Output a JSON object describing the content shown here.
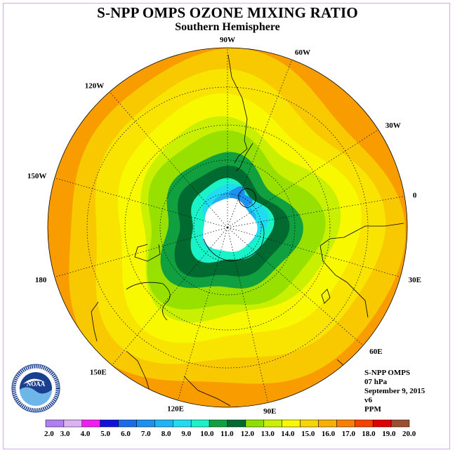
{
  "title": "S-NPP OMPS OZONE MIXING RATIO",
  "subtitle": "Southern Hemisphere",
  "longitude_labels": [
    "90W",
    "60W",
    "30W",
    "0",
    "30E",
    "60E",
    "90E",
    "120E",
    "150E",
    "180",
    "150W",
    "120W"
  ],
  "info": {
    "instrument": "S-NPP OMPS",
    "level": "07 hPa",
    "date": "September 9, 2015",
    "version": "v6",
    "units": "PPM"
  },
  "colorbar": {
    "ticks": [
      "2.0",
      "3.0",
      "4.0",
      "5.0",
      "6.0",
      "7.0",
      "8.0",
      "9.0",
      "10.0",
      "11.0",
      "12.0",
      "13.0",
      "14.0",
      "15.0",
      "16.0",
      "17.0",
      "18.0",
      "19.0",
      "20.0"
    ],
    "colors": [
      "#b07ef0",
      "#dcb0f5",
      "#f01cf0",
      "#1010e0",
      "#1a6ce8",
      "#1e90ee",
      "#20b4f2",
      "#20dcf0",
      "#1af2c8",
      "#10a040",
      "#006a30",
      "#8ce000",
      "#c8f000",
      "#f8f800",
      "#f8d400",
      "#f8b000",
      "#f88000",
      "#f84000",
      "#e00000",
      "#9a5030"
    ]
  },
  "map": {
    "zones": [
      {
        "level": 17.5,
        "color": "#f89c00"
      },
      {
        "level": 16.5,
        "color": "#f8c800"
      },
      {
        "level": 15.5,
        "color": "#f8e400"
      },
      {
        "level": 14.5,
        "color": "#f8f800"
      },
      {
        "level": 13.5,
        "color": "#c8f000"
      },
      {
        "level": 12.5,
        "color": "#98e000"
      },
      {
        "level": 11.5,
        "color": "#10a040"
      },
      {
        "level": 10.5,
        "color": "#006a30"
      },
      {
        "level": 9.5,
        "color": "#1af2c8"
      },
      {
        "level": 8.5,
        "color": "#20dcf0"
      },
      {
        "level": 7.5,
        "color": "#20b4f2"
      },
      {
        "level": 6.5,
        "color": "#1e90ee"
      }
    ],
    "missing_color": "#ffffff",
    "grid": true,
    "coastlines": true,
    "logo": "NOAA"
  }
}
